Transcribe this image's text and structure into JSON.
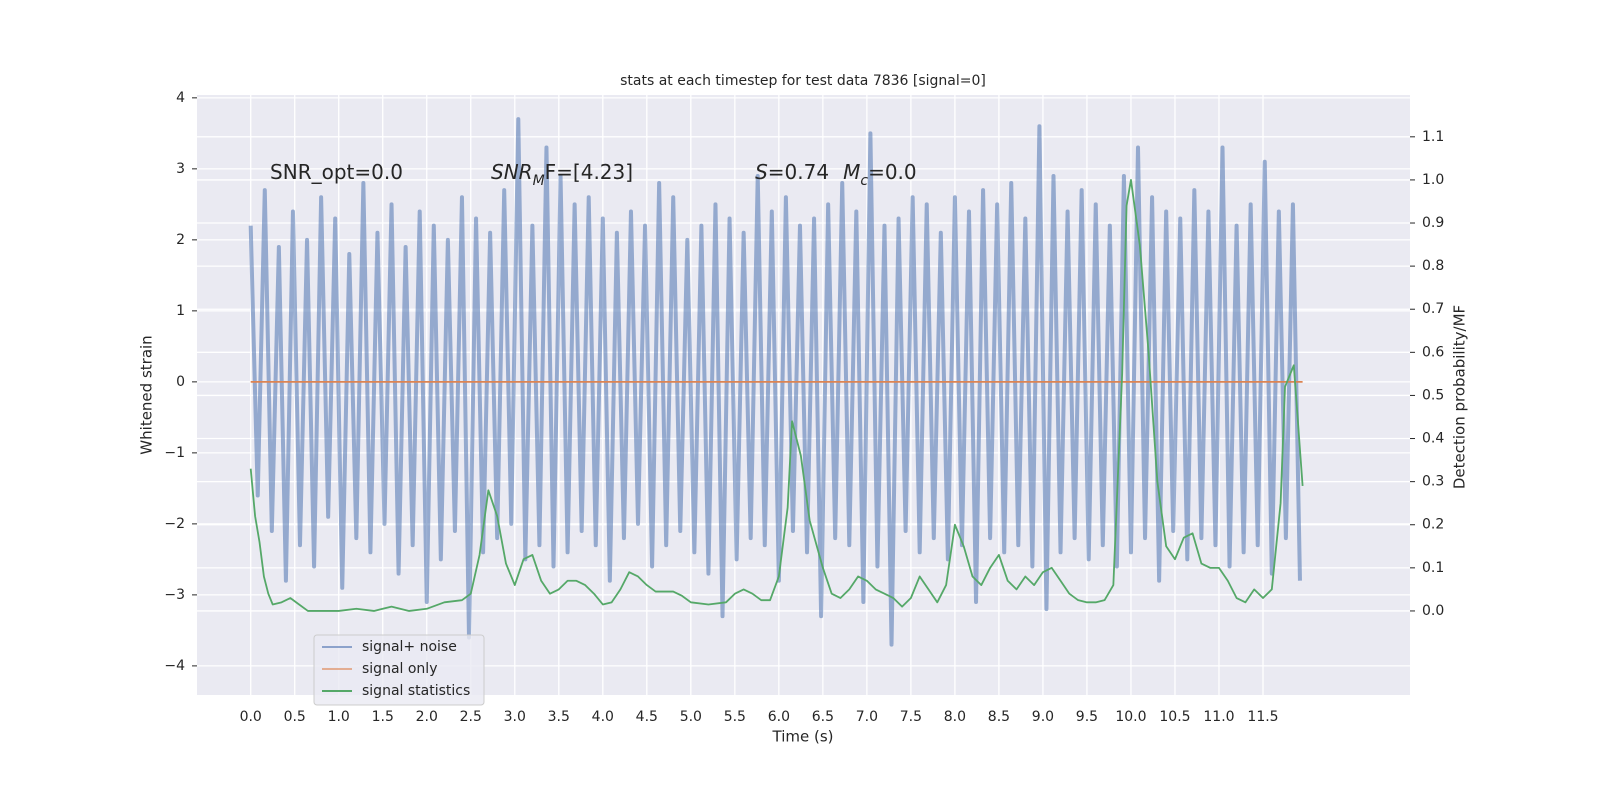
{
  "chart_data": {
    "type": "line",
    "title": "stats at each timestep for test data 7836 [signal=0]",
    "xlabel": "Time (s)",
    "ylabel": "Whitened strain",
    "y2label": "Detection probability/MF",
    "xlim": [
      -0.61,
      13.17
    ],
    "ylim": [
      -4.41,
      4.04
    ],
    "y2lim": [
      -0.195,
      1.197
    ],
    "xticks": [
      {
        "value": 0,
        "label": "0.0"
      },
      0.5,
      {
        "value": 1,
        "label": "1.0"
      },
      1.5,
      {
        "value": 2,
        "label": "2.0"
      },
      2.5,
      {
        "value": 3,
        "label": "3.0"
      },
      3.5,
      {
        "value": 4,
        "label": "4.0"
      },
      4.5,
      {
        "value": 5,
        "label": "5.0"
      },
      5.5,
      {
        "value": 6,
        "label": "6.0"
      },
      6.5,
      {
        "value": 7,
        "label": "7.0"
      },
      7.5,
      {
        "value": 8,
        "label": "8.0"
      },
      8.5,
      {
        "value": 9,
        "label": "9.0"
      },
      9.5,
      {
        "value": 10,
        "label": "10.0"
      },
      10.5,
      {
        "value": 11,
        "label": "11.0"
      },
      11.5
    ],
    "yticks": [
      {
        "value": -4,
        "label": "−4"
      },
      {
        "value": -3,
        "label": "−3"
      },
      {
        "value": -2,
        "label": "−2"
      },
      {
        "value": -1,
        "label": "−1"
      },
      0,
      1,
      2,
      3,
      4
    ],
    "y2ticks": [
      {
        "value": 0,
        "label": "0.0"
      },
      0.1,
      0.2,
      0.3,
      0.4,
      0.5,
      0.6,
      0.7,
      0.8,
      0.9,
      {
        "value": 1,
        "label": "1.0"
      },
      1.1
    ],
    "grid": true,
    "legend": "lower left",
    "annotations": [
      {
        "x": 0.22,
        "y": 2.94,
        "parts": [
          {
            "text": "SNR_opt=0.0",
            "style": "plain"
          }
        ]
      },
      {
        "x": 2.73,
        "y": 2.94,
        "parts": [
          {
            "text": "SNR",
            "style": "italic"
          },
          {
            "text": "M",
            "style": "sub"
          },
          {
            "text": "F=[4.23]",
            "style": "plain"
          }
        ]
      },
      {
        "x": 5.73,
        "y": 2.94,
        "parts": [
          {
            "text": "S",
            "style": "italic"
          },
          {
            "text": "=0.74",
            "style": "plain"
          }
        ]
      },
      {
        "x": 6.73,
        "y": 2.94,
        "parts": [
          {
            "text": "M",
            "style": "italic"
          },
          {
            "text": "c",
            "style": "sub"
          },
          {
            "text": "=0.0",
            "style": "plain"
          }
        ]
      }
    ],
    "series": [
      {
        "name": "signal+ noise",
        "color": "#4c72b0",
        "axis": "y",
        "x": [
          0,
          0.08,
          0.16,
          0.24,
          0.32,
          0.4,
          0.48,
          0.56,
          0.64,
          0.72,
          0.8,
          0.88,
          0.96,
          1.04,
          1.12,
          1.2,
          1.28,
          1.36,
          1.44,
          1.52,
          1.6,
          1.68,
          1.76,
          1.84,
          1.92,
          2,
          2.08,
          2.16,
          2.24,
          2.32,
          2.4,
          2.48,
          2.56,
          2.64,
          2.72,
          2.8,
          2.88,
          2.96,
          3.04,
          3.12,
          3.2,
          3.28,
          3.36,
          3.44,
          3.52,
          3.6,
          3.68,
          3.76,
          3.84,
          3.92,
          4,
          4.08,
          4.16,
          4.24,
          4.32,
          4.4,
          4.48,
          4.56,
          4.64,
          4.72,
          4.8,
          4.88,
          4.96,
          5.04,
          5.12,
          5.2,
          5.28,
          5.36,
          5.44,
          5.52,
          5.6,
          5.68,
          5.76,
          5.84,
          5.92,
          6,
          6.08,
          6.16,
          6.24,
          6.32,
          6.4,
          6.48,
          6.56,
          6.64,
          6.72,
          6.8,
          6.88,
          6.96,
          7.04,
          7.12,
          7.2,
          7.28,
          7.36,
          7.44,
          7.52,
          7.6,
          7.68,
          7.76,
          7.84,
          7.92,
          8,
          8.08,
          8.16,
          8.24,
          8.32,
          8.4,
          8.48,
          8.56,
          8.64,
          8.72,
          8.8,
          8.88,
          8.96,
          9.04,
          9.12,
          9.2,
          9.28,
          9.36,
          9.44,
          9.52,
          9.6,
          9.68,
          9.76,
          9.84,
          9.92,
          10,
          10.08,
          10.16,
          10.24,
          10.32,
          10.4,
          10.48,
          10.56,
          10.64,
          10.72,
          10.8,
          10.88,
          10.96,
          11.04,
          11.12,
          11.2,
          11.28,
          11.36,
          11.44,
          11.52,
          11.6,
          11.68,
          11.76,
          11.84,
          11.92
        ],
        "values": [
          2.2,
          -1.6,
          2.7,
          -2.1,
          1.9,
          -2.8,
          2.4,
          -2.3,
          2.0,
          -2.6,
          2.6,
          -1.9,
          2.3,
          -2.9,
          1.8,
          -2.2,
          2.8,
          -2.4,
          2.1,
          -2.0,
          2.5,
          -2.7,
          1.9,
          -2.3,
          2.4,
          -3.1,
          2.2,
          -2.5,
          2.0,
          -2.1,
          2.6,
          -3.6,
          2.3,
          -2.4,
          2.1,
          -2.2,
          2.7,
          -2.0,
          3.7,
          -2.5,
          2.2,
          -2.3,
          3.3,
          -2.6,
          2.9,
          -2.4,
          2.5,
          -2.1,
          2.6,
          -2.3,
          2.3,
          -2.8,
          2.1,
          -2.2,
          2.4,
          -2.0,
          2.2,
          -2.6,
          2.8,
          -2.3,
          2.6,
          -2.1,
          2.0,
          -2.4,
          2.2,
          -2.7,
          2.5,
          -3.3,
          2.3,
          -2.5,
          2.1,
          -2.2,
          2.9,
          -2.3,
          2.4,
          -2.8,
          2.6,
          -2.1,
          2.2,
          -2.4,
          2.3,
          -3.3,
          2.5,
          -2.2,
          2.8,
          -2.3,
          2.4,
          -3.1,
          3.5,
          -2.6,
          2.2,
          -3.7,
          2.3,
          -2.1,
          2.6,
          -2.4,
          2.5,
          -2.2,
          2.1,
          -2.5,
          2.6,
          -2.3,
          2.4,
          -3.1,
          2.7,
          -2.2,
          2.5,
          -2.4,
          2.8,
          -2.3,
          2.3,
          -2.6,
          3.6,
          -3.2,
          2.9,
          -2.4,
          2.4,
          -2.2,
          2.7,
          -2.5,
          2.5,
          -2.3,
          2.2,
          -2.6,
          2.9,
          -2.4,
          3.3,
          -2.2,
          2.6,
          -2.8,
          2.4,
          -2.1,
          2.3,
          -2.5,
          2.7,
          -2.2,
          2.4,
          -2.3,
          3.3,
          -2.6,
          2.2,
          -2.4,
          2.5,
          -2.3,
          3.1,
          -2.7,
          2.4,
          -2.2,
          2.5,
          -2.8
        ]
      },
      {
        "name": "signal only",
        "color": "#dd8452",
        "axis": "y",
        "x": [
          0,
          11.95
        ],
        "values": [
          0,
          0
        ]
      },
      {
        "name": "signal statistics",
        "color": "#55a868",
        "axis": "y2",
        "x": [
          0,
          0.05,
          0.1,
          0.15,
          0.2,
          0.25,
          0.35,
          0.45,
          0.55,
          0.65,
          0.8,
          1,
          1.2,
          1.4,
          1.6,
          1.8,
          2,
          2.2,
          2.4,
          2.5,
          2.6,
          2.7,
          2.8,
          2.9,
          3,
          3.1,
          3.2,
          3.3,
          3.4,
          3.5,
          3.6,
          3.7,
          3.8,
          3.9,
          4,
          4.1,
          4.2,
          4.3,
          4.4,
          4.5,
          4.6,
          4.7,
          4.8,
          4.9,
          5,
          5.2,
          5.4,
          5.5,
          5.6,
          5.7,
          5.8,
          5.9,
          6,
          6.1,
          6.15,
          6.25,
          6.35,
          6.5,
          6.6,
          6.7,
          6.8,
          6.9,
          7,
          7.1,
          7.2,
          7.3,
          7.4,
          7.5,
          7.6,
          7.7,
          7.8,
          7.9,
          8,
          8.1,
          8.2,
          8.3,
          8.4,
          8.5,
          8.6,
          8.7,
          8.8,
          8.9,
          9,
          9.1,
          9.2,
          9.3,
          9.4,
          9.5,
          9.6,
          9.7,
          9.8,
          9.9,
          9.95,
          10,
          10.1,
          10.2,
          10.3,
          10.4,
          10.5,
          10.6,
          10.7,
          10.8,
          10.9,
          11,
          11.1,
          11.2,
          11.3,
          11.4,
          11.5,
          11.6,
          11.7,
          11.75,
          11.85,
          11.95
        ],
        "values": [
          0.33,
          0.22,
          0.16,
          0.08,
          0.04,
          0.015,
          0.02,
          0.03,
          0.015,
          0,
          0,
          0,
          0.005,
          0,
          0.01,
          0,
          0.005,
          0.02,
          0.025,
          0.04,
          0.13,
          0.28,
          0.22,
          0.11,
          0.06,
          0.12,
          0.13,
          0.07,
          0.04,
          0.05,
          0.07,
          0.07,
          0.06,
          0.04,
          0.015,
          0.02,
          0.05,
          0.09,
          0.08,
          0.06,
          0.045,
          0.045,
          0.045,
          0.035,
          0.02,
          0.015,
          0.02,
          0.04,
          0.05,
          0.04,
          0.025,
          0.025,
          0.08,
          0.24,
          0.44,
          0.36,
          0.21,
          0.1,
          0.04,
          0.03,
          0.05,
          0.08,
          0.07,
          0.05,
          0.04,
          0.03,
          0.01,
          0.03,
          0.08,
          0.05,
          0.02,
          0.06,
          0.2,
          0.15,
          0.08,
          0.06,
          0.1,
          0.13,
          0.07,
          0.05,
          0.08,
          0.06,
          0.09,
          0.1,
          0.07,
          0.04,
          0.025,
          0.02,
          0.02,
          0.025,
          0.06,
          0.55,
          0.94,
          1,
          0.85,
          0.6,
          0.3,
          0.15,
          0.12,
          0.17,
          0.18,
          0.11,
          0.1,
          0.1,
          0.07,
          0.03,
          0.02,
          0.05,
          0.03,
          0.05,
          0.25,
          0.52,
          0.57,
          0.29
        ]
      }
    ]
  }
}
